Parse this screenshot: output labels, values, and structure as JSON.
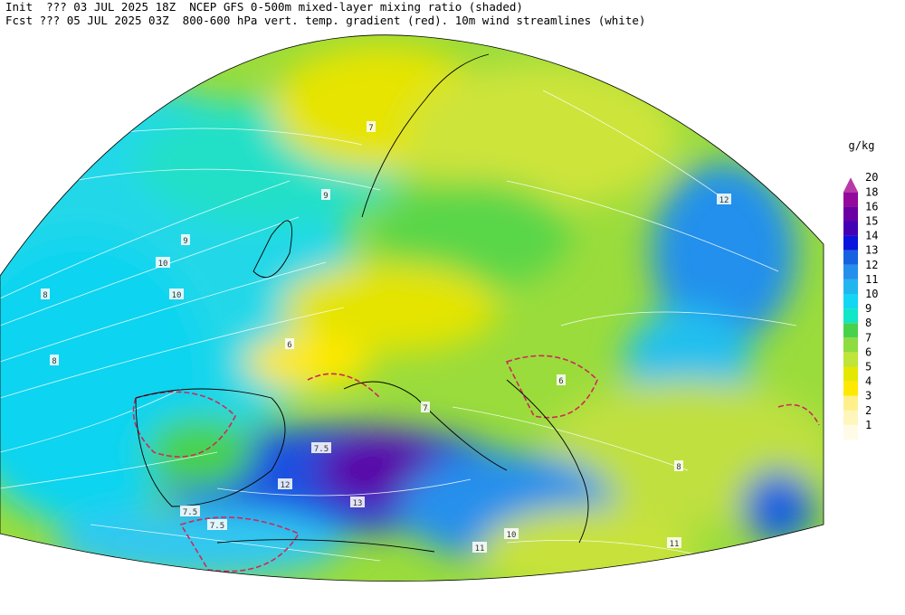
{
  "header": {
    "line1": "Init  ??? 03 JUL 2025 18Z  NCEP GFS 0-500m mixed-layer mixing ratio (shaded)",
    "line2": "Fcst ??? 05 JUL 2025 03Z  800-600 hPa vert. temp. gradient (red). 10m wind streamlines (white)"
  },
  "legend": {
    "unit": "g/kg",
    "levels": [
      {
        "label": "1",
        "color": "#fffbe6"
      },
      {
        "label": "2",
        "color": "#fff6bd"
      },
      {
        "label": "3",
        "color": "#fff08c"
      },
      {
        "label": "4",
        "color": "#ffe900"
      },
      {
        "label": "5",
        "color": "#e4e800"
      },
      {
        "label": "6",
        "color": "#bfe43a"
      },
      {
        "label": "7",
        "color": "#8edc40"
      },
      {
        "label": "8",
        "color": "#48d24c"
      },
      {
        "label": "9",
        "color": "#10e6c8"
      },
      {
        "label": "10",
        "color": "#12d6f2"
      },
      {
        "label": "11",
        "color": "#22b6ee"
      },
      {
        "label": "12",
        "color": "#2590ec"
      },
      {
        "label": "13",
        "color": "#1662e0"
      },
      {
        "label": "14",
        "color": "#0a14dc"
      },
      {
        "label": "15",
        "color": "#4400b4"
      },
      {
        "label": "16",
        "color": "#6a00a4"
      },
      {
        "label": "18",
        "color": "#94089c"
      },
      {
        "label": "20",
        "color": "#b83aa8"
      }
    ]
  },
  "map": {
    "contour_labels": [
      "8",
      "7",
      "9",
      "10",
      "10",
      "8",
      "9",
      "6",
      "7",
      "7.5",
      "12",
      "13",
      "7.5",
      "11",
      "10",
      "8",
      "6",
      "12",
      "7.5",
      "11"
    ]
  }
}
